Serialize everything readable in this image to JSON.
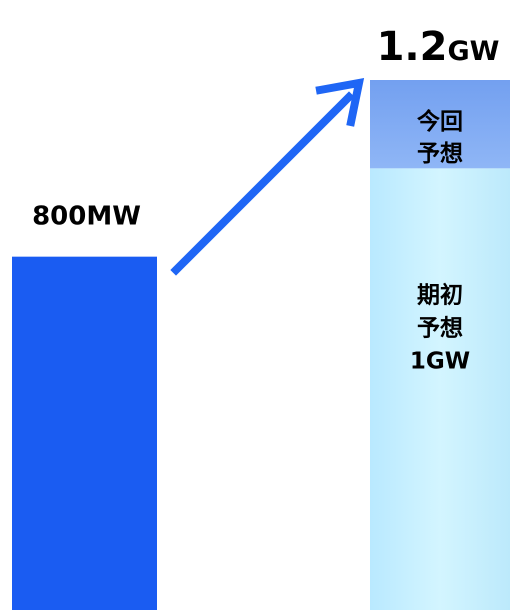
{
  "chart_data": {
    "type": "bar",
    "categories": [
      "",
      ""
    ],
    "values": [
      800,
      1200
    ],
    "unit": "MW",
    "data_labels": [
      "800MW",
      "1.2GW"
    ],
    "segments": [
      {
        "label_lines": [
          "今回",
          "予想"
        ],
        "value": 200,
        "color": "#7aa6f2"
      },
      {
        "label_lines": [
          "期初",
          "予想",
          "1GW"
        ],
        "value": 1000,
        "color": "#c4f0ff"
      }
    ],
    "bar_colors": [
      "#1a5cf2"
    ],
    "arrow_color": "#1f66f5",
    "title": "",
    "xlabel": "",
    "ylabel": ""
  }
}
